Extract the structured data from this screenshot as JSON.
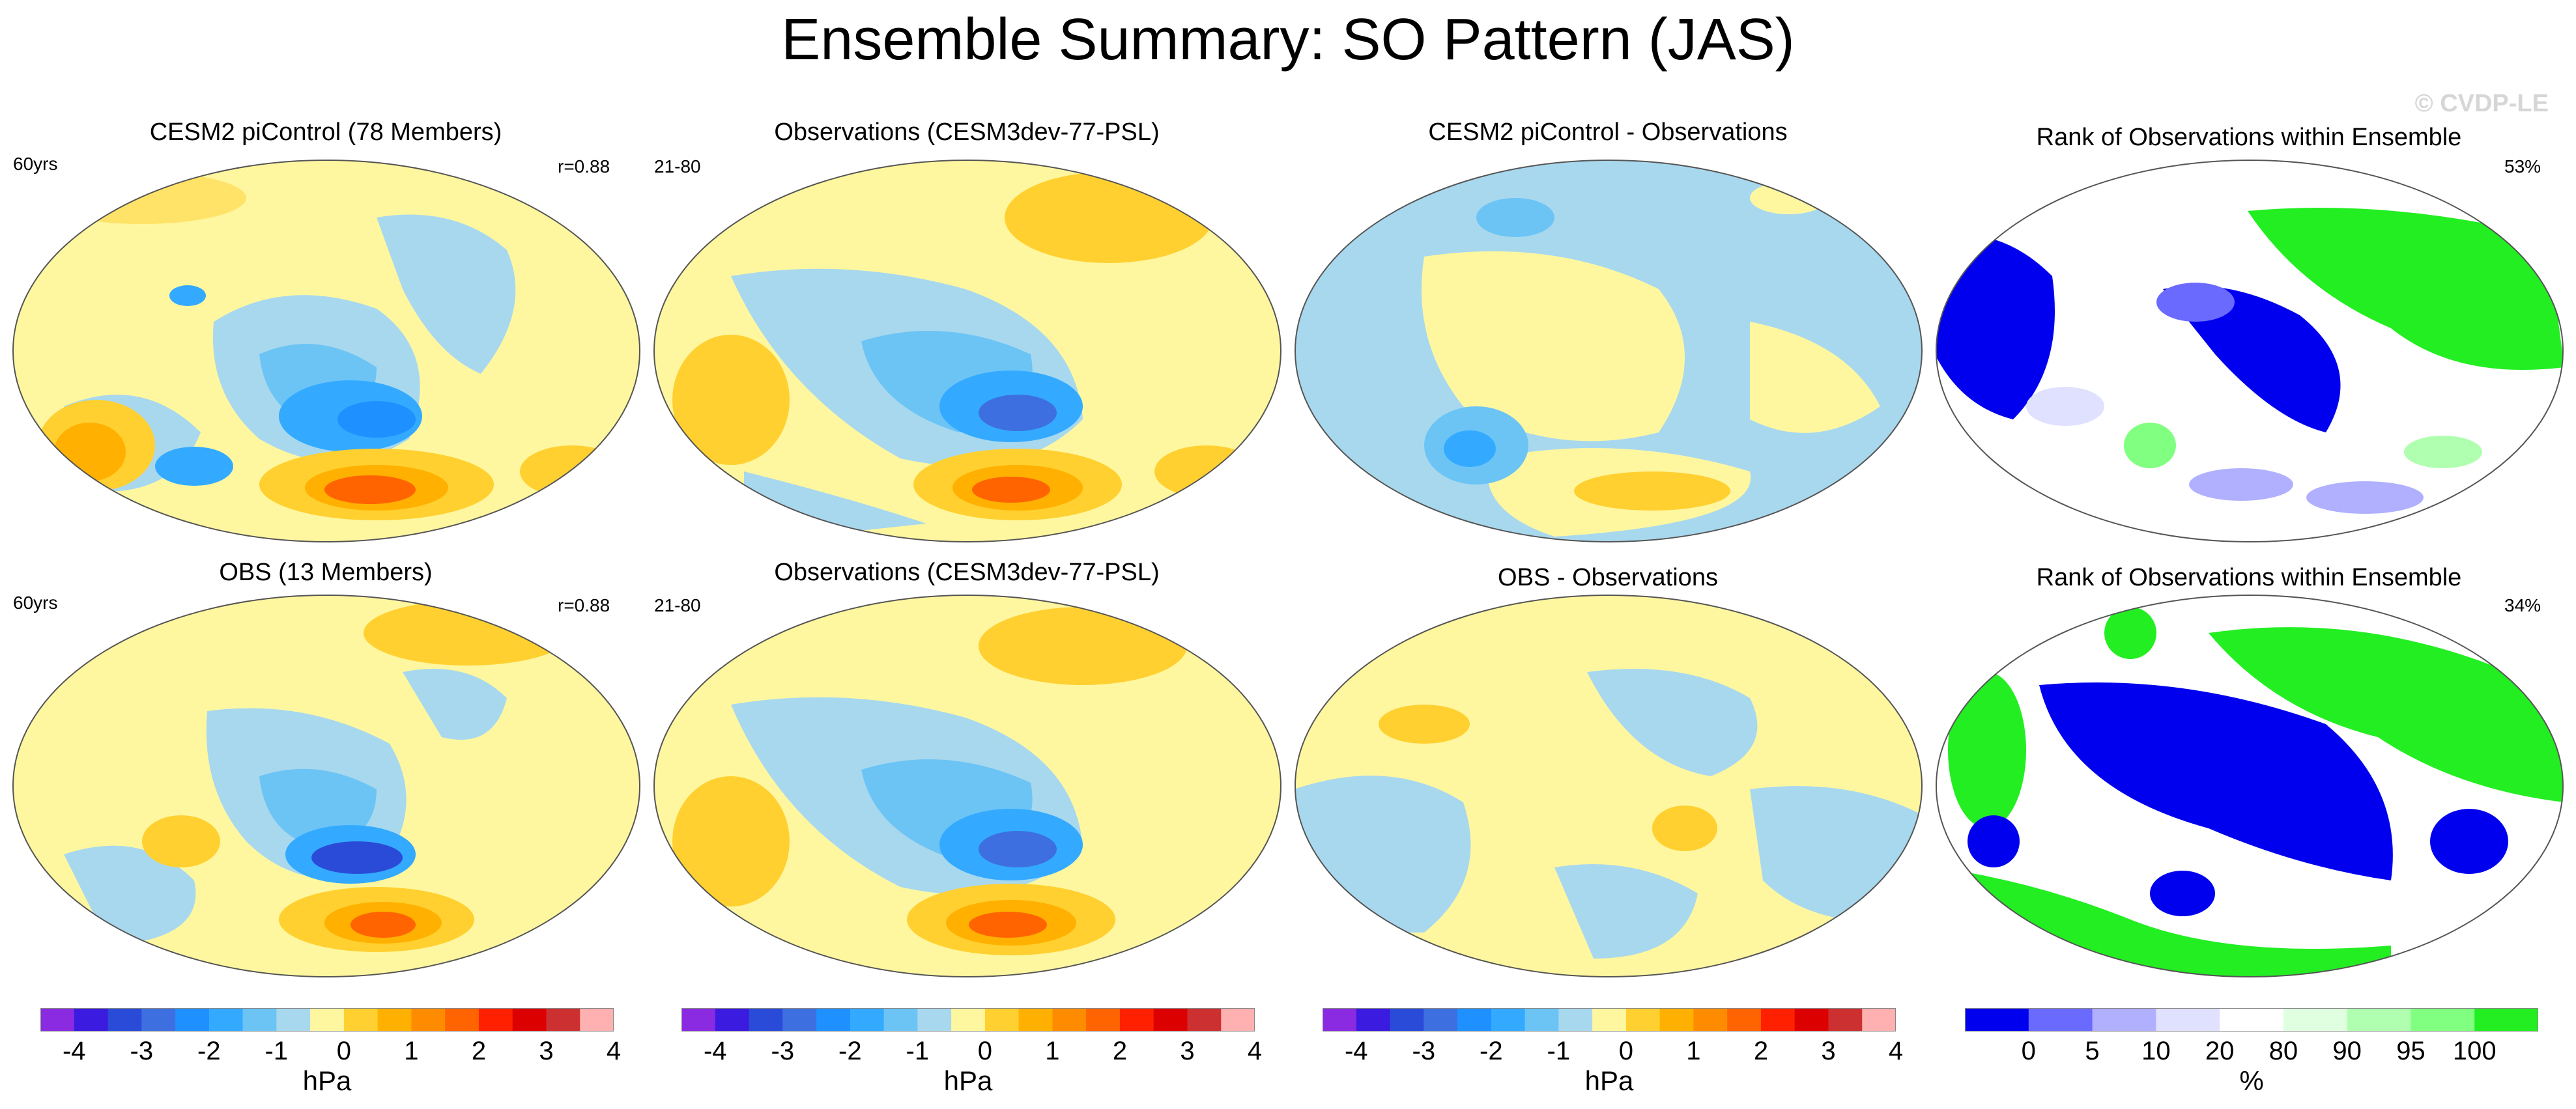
{
  "title": "Ensemble Summary: SO Pattern (JAS)",
  "watermark": "© CVDP-LE",
  "panels": [
    {
      "title": "CESM2 piControl (78 Members)",
      "left_label": "60yrs",
      "right_label": "r=0.88",
      "kind": "pattern"
    },
    {
      "title": "Observations (CESM3dev-77-PSL)",
      "left_label": "21-80",
      "right_label": "",
      "kind": "pattern"
    },
    {
      "title": "CESM2 piControl - Observations",
      "left_label": "",
      "right_label": "",
      "kind": "diff"
    },
    {
      "title": "Rank of Observations within Ensemble",
      "left_label": "",
      "right_label": "53%",
      "kind": "rank"
    },
    {
      "title": "OBS (13 Members)",
      "left_label": "60yrs",
      "right_label": "r=0.88",
      "kind": "pattern"
    },
    {
      "title": "Observations (CESM3dev-77-PSL)",
      "left_label": "21-80",
      "right_label": "",
      "kind": "pattern"
    },
    {
      "title": "OBS - Observations",
      "left_label": "",
      "right_label": "",
      "kind": "diff"
    },
    {
      "title": "Rank of Observations within Ensemble",
      "left_label": "",
      "right_label": "34%",
      "kind": "rank"
    }
  ],
  "hpa_colorbar": {
    "colors": [
      "#8a2be2",
      "#3b1be0",
      "#2a4bd8",
      "#3e6fe0",
      "#1e90ff",
      "#33aaff",
      "#6cc4f5",
      "#a8d8ee",
      "#fff7a0",
      "#ffd030",
      "#ffb000",
      "#ff8c00",
      "#ff6400",
      "#ff2000",
      "#dd0000",
      "#cc3030",
      "#ffb0b0"
    ],
    "ticks": [
      "-4",
      "-3",
      "-2",
      "-1",
      "0",
      "1",
      "2",
      "3",
      "4"
    ],
    "unit": "hPa"
  },
  "rank_colorbar": {
    "colors": [
      "#0000ee",
      "#6a6aff",
      "#b0b0ff",
      "#e0e0ff",
      "#ffffff",
      "#e0ffe0",
      "#b0ffb0",
      "#80ff80",
      "#22ee22"
    ],
    "ticks": [
      "0",
      "5",
      "10",
      "20",
      "80",
      "90",
      "95",
      "100"
    ],
    "unit": "%"
  }
}
